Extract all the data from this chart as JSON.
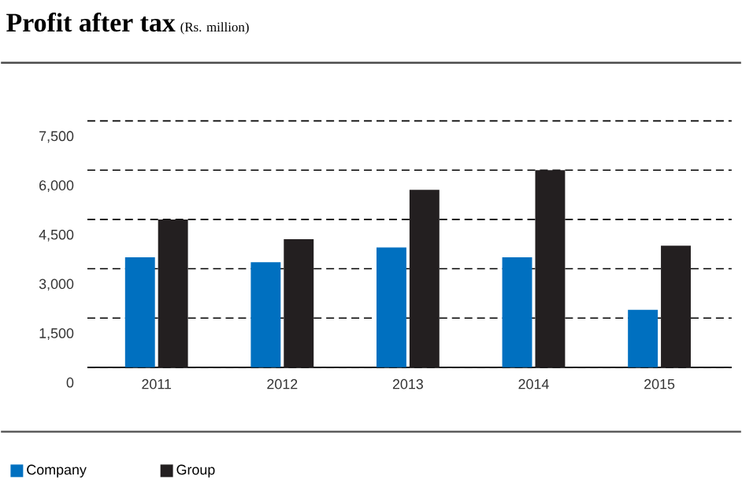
{
  "chart_data": {
    "type": "bar",
    "title": "Profit after tax",
    "subtitle": "(Rs. million)",
    "categories": [
      "2011",
      "2012",
      "2013",
      "2014",
      "2015"
    ],
    "series": [
      {
        "name": "Company",
        "color": "#0070c0",
        "values": [
          3350,
          3200,
          3650,
          3350,
          1750
        ]
      },
      {
        "name": "Group",
        "color": "#231f20",
        "values": [
          4500,
          3900,
          5400,
          6000,
          3700
        ]
      }
    ],
    "ylim": [
      0,
      7500
    ],
    "yticks": [
      {
        "value": 0,
        "label": "0"
      },
      {
        "value": 1500,
        "label": "1,500"
      },
      {
        "value": 3000,
        "label": "3,000"
      },
      {
        "value": 4500,
        "label": "4,500"
      },
      {
        "value": 6000,
        "label": "6,000"
      },
      {
        "value": 7500,
        "label": "7,500"
      }
    ],
    "grid": "y",
    "legend": "bottom"
  }
}
